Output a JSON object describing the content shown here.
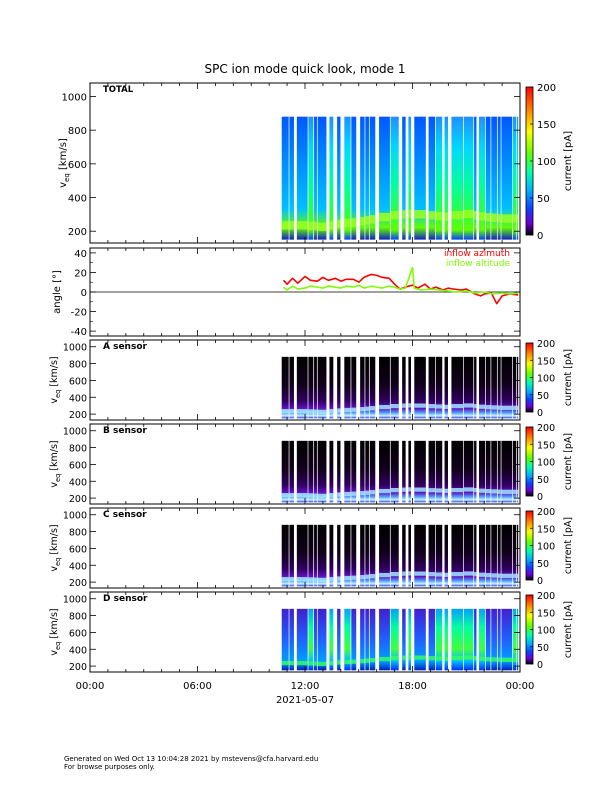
{
  "title": "SPC ion mode quick look, mode 1",
  "x_axis": {
    "tick_labels": [
      "00:00",
      "06:00",
      "12:00",
      "18:00",
      "00:00"
    ],
    "date_label": "2021-05-07",
    "range_hours": [
      0,
      24
    ]
  },
  "footer": {
    "line1": "Generated on Wed Oct 13 10:04:28 2021 by mstevens@cfa.harvard.edu",
    "line2": "For browse purposes only."
  },
  "colors": {
    "azimuth": "#ff0000",
    "altitude": "#7cff00",
    "fill_colors": [
      "#000000",
      "#8000ff",
      "#0050ff",
      "#00c0ff",
      "#00ff90",
      "#7cff00",
      "#ffe000",
      "#ff8000",
      "#ff0000"
    ]
  },
  "panels": [
    {
      "id": "total",
      "label": "TOTAL",
      "ylabel_main": "v",
      "ylabel_sub": "eq",
      "ylabel_unit": "[km/s]",
      "ylim": [
        130,
        1080
      ],
      "yticks": [
        200,
        400,
        600,
        800,
        1000
      ],
      "colorbar": {
        "label": "current [pA]",
        "range": [
          0,
          200
        ],
        "ticks": [
          0,
          50,
          100,
          150,
          200
        ]
      },
      "style": "total"
    },
    {
      "id": "a",
      "label": "A sensor",
      "ylabel_main": "v",
      "ylabel_sub": "eq",
      "ylabel_unit": "[km/s]",
      "ylim": [
        130,
        1080
      ],
      "yticks": [
        200,
        400,
        600,
        800,
        1000
      ],
      "colorbar": {
        "label": "current [pA]",
        "range": [
          0,
          200
        ],
        "ticks": [
          0,
          50,
          100,
          150,
          200
        ]
      },
      "style": "dark"
    },
    {
      "id": "b",
      "label": "B sensor",
      "ylabel_main": "v",
      "ylabel_sub": "eq",
      "ylabel_unit": "[km/s]",
      "ylim": [
        130,
        1080
      ],
      "yticks": [
        200,
        400,
        600,
        800,
        1000
      ],
      "colorbar": {
        "label": "current [pA]",
        "range": [
          0,
          200
        ],
        "ticks": [
          0,
          50,
          100,
          150,
          200
        ]
      },
      "style": "dark"
    },
    {
      "id": "c",
      "label": "C sensor",
      "ylabel_main": "v",
      "ylabel_sub": "eq",
      "ylabel_unit": "[km/s]",
      "ylim": [
        130,
        1080
      ],
      "yticks": [
        200,
        400,
        600,
        800,
        1000
      ],
      "colorbar": {
        "label": "current [pA]",
        "range": [
          0,
          200
        ],
        "ticks": [
          0,
          50,
          100,
          150,
          200
        ]
      },
      "style": "dark"
    },
    {
      "id": "d",
      "label": "D sensor",
      "ylabel_main": "v",
      "ylabel_sub": "eq",
      "ylabel_unit": "[km/s]",
      "ylim": [
        130,
        1080
      ],
      "yticks": [
        200,
        400,
        600,
        800,
        1000
      ],
      "colorbar": {
        "label": "current [pA]",
        "range": [
          0,
          200
        ],
        "ticks": [
          0,
          50,
          100,
          150,
          200
        ]
      },
      "style": "green"
    }
  ],
  "chart_data": {
    "type": "heatmap",
    "title": "SPC ion mode quick look, mode 1",
    "xlabel": "2021-05-07",
    "xlim_hours": [
      0,
      24
    ],
    "data_start_hour": 10.7,
    "data_end_hour": 23.9,
    "vmax_kms": 880,
    "vmin_kms": 150,
    "solar_wind_peak_kms": [
      [
        10.8,
        230
      ],
      [
        12.0,
        230
      ],
      [
        13.0,
        220
      ],
      [
        14.0,
        240
      ],
      [
        15.0,
        250
      ],
      [
        16.0,
        270
      ],
      [
        17.0,
        290
      ],
      [
        18.0,
        300
      ],
      [
        19.0,
        290
      ],
      [
        20.0,
        280
      ],
      [
        21.0,
        300
      ],
      [
        22.0,
        280
      ],
      [
        23.0,
        270
      ],
      [
        23.9,
        270
      ]
    ],
    "angle_panel": {
      "ylabel": "angle [°]",
      "ylim": [
        -45,
        45
      ],
      "yticks": [
        -40,
        -20,
        0,
        20,
        40
      ],
      "legend": [
        "inflow azimuth",
        "inflow altitude"
      ],
      "series": [
        {
          "name": "inflow azimuth",
          "points": [
            [
              10.8,
              12
            ],
            [
              11.0,
              8
            ],
            [
              11.3,
              14
            ],
            [
              11.6,
              9
            ],
            [
              12.0,
              16
            ],
            [
              12.3,
              12
            ],
            [
              12.7,
              11
            ],
            [
              13.0,
              15
            ],
            [
              13.3,
              12
            ],
            [
              13.7,
              14
            ],
            [
              14.0,
              11
            ],
            [
              14.3,
              13
            ],
            [
              14.7,
              13
            ],
            [
              15.0,
              10
            ],
            [
              15.3,
              15
            ],
            [
              15.7,
              18
            ],
            [
              16.0,
              17
            ],
            [
              16.3,
              15
            ],
            [
              16.7,
              14
            ],
            [
              17.0,
              8
            ],
            [
              17.3,
              3
            ],
            [
              17.6,
              5
            ],
            [
              18.0,
              7
            ],
            [
              18.3,
              4
            ],
            [
              18.7,
              8
            ],
            [
              19.0,
              3
            ],
            [
              19.3,
              5
            ],
            [
              19.7,
              2
            ],
            [
              20.0,
              4
            ],
            [
              20.3,
              3
            ],
            [
              20.7,
              2
            ],
            [
              21.0,
              3
            ],
            [
              21.5,
              -2
            ],
            [
              21.8,
              -4
            ],
            [
              22.0,
              -2
            ],
            [
              22.4,
              -1
            ],
            [
              22.7,
              -12
            ],
            [
              23.0,
              -4
            ],
            [
              23.4,
              -2
            ],
            [
              23.9,
              -3
            ]
          ]
        },
        {
          "name": "inflow altitude",
          "points": [
            [
              10.8,
              5
            ],
            [
              11.0,
              2
            ],
            [
              11.3,
              6
            ],
            [
              11.6,
              3
            ],
            [
              12.0,
              4
            ],
            [
              12.3,
              6
            ],
            [
              12.7,
              5
            ],
            [
              13.0,
              4
            ],
            [
              13.3,
              6
            ],
            [
              13.7,
              5
            ],
            [
              14.0,
              4
            ],
            [
              14.3,
              6
            ],
            [
              14.7,
              5
            ],
            [
              15.0,
              7
            ],
            [
              15.3,
              4
            ],
            [
              15.7,
              6
            ],
            [
              16.0,
              5
            ],
            [
              16.3,
              4
            ],
            [
              16.7,
              6
            ],
            [
              17.0,
              5
            ],
            [
              17.3,
              3
            ],
            [
              17.6,
              4
            ],
            [
              18.0,
              25
            ],
            [
              18.1,
              4
            ],
            [
              18.5,
              2
            ],
            [
              19.0,
              3
            ],
            [
              19.5,
              2
            ],
            [
              20.0,
              1
            ],
            [
              20.5,
              0
            ],
            [
              21.0,
              1
            ],
            [
              21.5,
              -1
            ],
            [
              22.0,
              0
            ],
            [
              22.5,
              -2
            ],
            [
              23.0,
              -1
            ],
            [
              23.5,
              -2
            ],
            [
              23.9,
              -1
            ]
          ]
        }
      ]
    }
  }
}
